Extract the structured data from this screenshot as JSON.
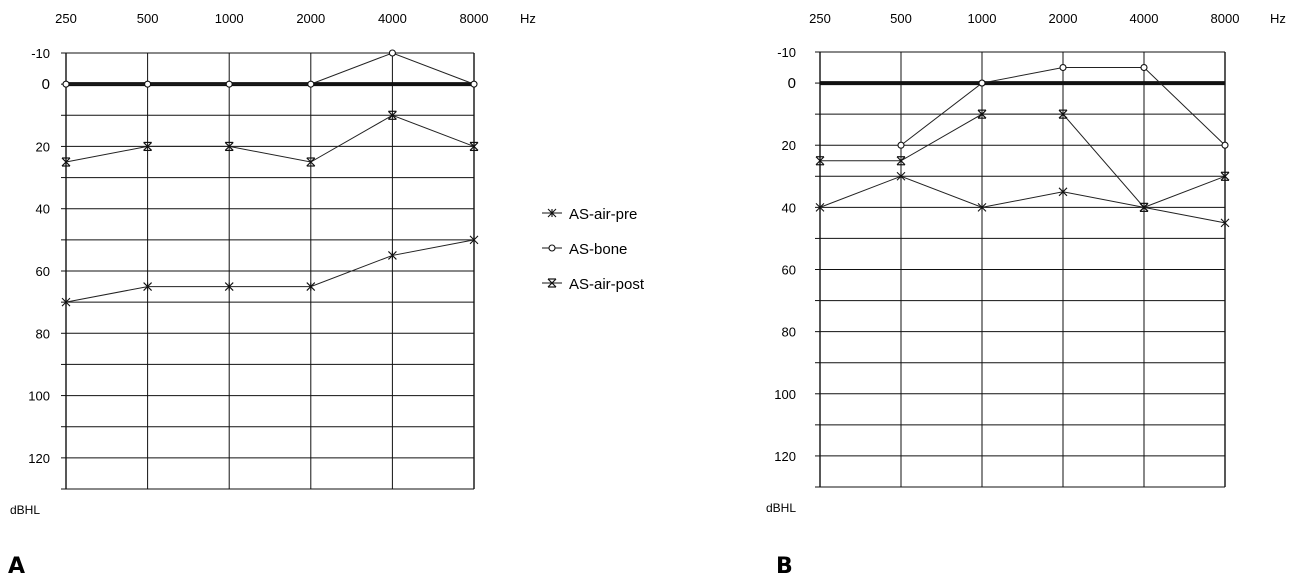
{
  "chart_data": [
    {
      "type": "line",
      "panel_label": "A",
      "x_scale": "log",
      "x": [
        250,
        500,
        1000,
        2000,
        4000,
        8000
      ],
      "x_tick_labels": [
        "250",
        "500",
        "1000",
        "2000",
        "4000",
        "8000"
      ],
      "x_unit": "Hz",
      "y_tick_labels": [
        "-10",
        "0",
        "20",
        "40",
        "60",
        "80",
        "100",
        "120"
      ],
      "y_unit": "dBHL",
      "ylim": [
        -10,
        130
      ],
      "y_inverted": true,
      "grid": true,
      "series": [
        {
          "name": "AS-air-pre",
          "marker": "asterisk",
          "values": [
            70,
            65,
            65,
            65,
            55,
            50
          ]
        },
        {
          "name": "AS-bone",
          "marker": "circle",
          "values": [
            0,
            0,
            0,
            0,
            -10,
            0
          ]
        },
        {
          "name": "AS-air-post",
          "marker": "x-bar",
          "values": [
            25,
            20,
            20,
            25,
            10,
            20
          ]
        }
      ]
    },
    {
      "type": "line",
      "panel_label": "B",
      "x_scale": "log",
      "x": [
        250,
        500,
        1000,
        2000,
        4000,
        8000
      ],
      "x_tick_labels": [
        "250",
        "500",
        "1000",
        "2000",
        "4000",
        "8000"
      ],
      "x_unit": "Hz",
      "y_tick_labels": [
        "-10",
        "0",
        "20",
        "40",
        "60",
        "80",
        "100",
        "120"
      ],
      "y_unit": "dBHL",
      "ylim": [
        -10,
        130
      ],
      "y_inverted": true,
      "grid": true,
      "series": [
        {
          "name": "AS-air-pre",
          "marker": "asterisk",
          "values": [
            40,
            30,
            40,
            35,
            40,
            45
          ]
        },
        {
          "name": "AS-bone",
          "marker": "circle",
          "values": [
            null,
            20,
            0,
            -5,
            -5,
            20
          ]
        },
        {
          "name": "AS-air-post",
          "marker": "x-bar",
          "values": [
            25,
            25,
            10,
            10,
            40,
            30
          ]
        }
      ]
    }
  ],
  "legend": {
    "placement": "between panels",
    "items": [
      {
        "label": "AS-air-pre",
        "marker": "asterisk"
      },
      {
        "label": "AS-bone",
        "marker": "circle"
      },
      {
        "label": "AS-air-post",
        "marker": "x-bar"
      }
    ]
  }
}
